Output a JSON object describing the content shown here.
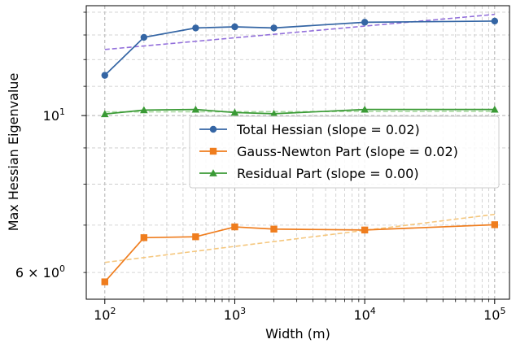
{
  "chart_data": {
    "type": "line",
    "title": "",
    "xlabel": "Width (m)",
    "ylabel": "Max Hessian Eigenvalue",
    "xscale": "log",
    "yscale": "log",
    "xlim": [
      72,
      130000
    ],
    "ylim": [
      5.5,
      14.3
    ],
    "grid": true,
    "legend_position": "center-right",
    "x": [
      100,
      200,
      500,
      1000,
      2000,
      10000,
      100000
    ],
    "x_ticks": [
      {
        "value": 100,
        "base": "10",
        "exp": "2"
      },
      {
        "value": 1000,
        "base": "10",
        "exp": "3"
      },
      {
        "value": 10000,
        "base": "10",
        "exp": "4"
      },
      {
        "value": 100000,
        "base": "10",
        "exp": "5"
      }
    ],
    "y_ticks": [
      {
        "value": 10,
        "text": "10",
        "exp": "1"
      },
      {
        "value": 6,
        "text": "6 × 10",
        "exp": "0"
      }
    ],
    "series": [
      {
        "name": "Total Hessian (slope = 0.02)",
        "color": "#3465a4",
        "marker": "circle",
        "values": [
          11.4,
          12.9,
          13.3,
          13.35,
          13.3,
          13.55,
          13.6
        ],
        "fit": {
          "color": "#9370db",
          "values": [
            12.4,
            13.9
          ]
        }
      },
      {
        "name": "Gauss-Newton Part (slope = 0.02)",
        "color": "#ef7d1e",
        "marker": "square",
        "values": [
          5.82,
          6.72,
          6.74,
          6.96,
          6.91,
          6.89,
          7.01
        ],
        "fit": {
          "color": "#f5c77e",
          "values": [
            6.2,
            7.25
          ]
        }
      },
      {
        "name": "Residual Part (slope = 0.00)",
        "color": "#3a9a35",
        "marker": "triangle",
        "values": [
          10.05,
          10.18,
          10.2,
          10.1,
          10.06,
          10.2,
          10.2
        ],
        "fit": {
          "color": "#a8d8a0",
          "values": [
            10.12,
            10.14
          ]
        }
      }
    ]
  }
}
